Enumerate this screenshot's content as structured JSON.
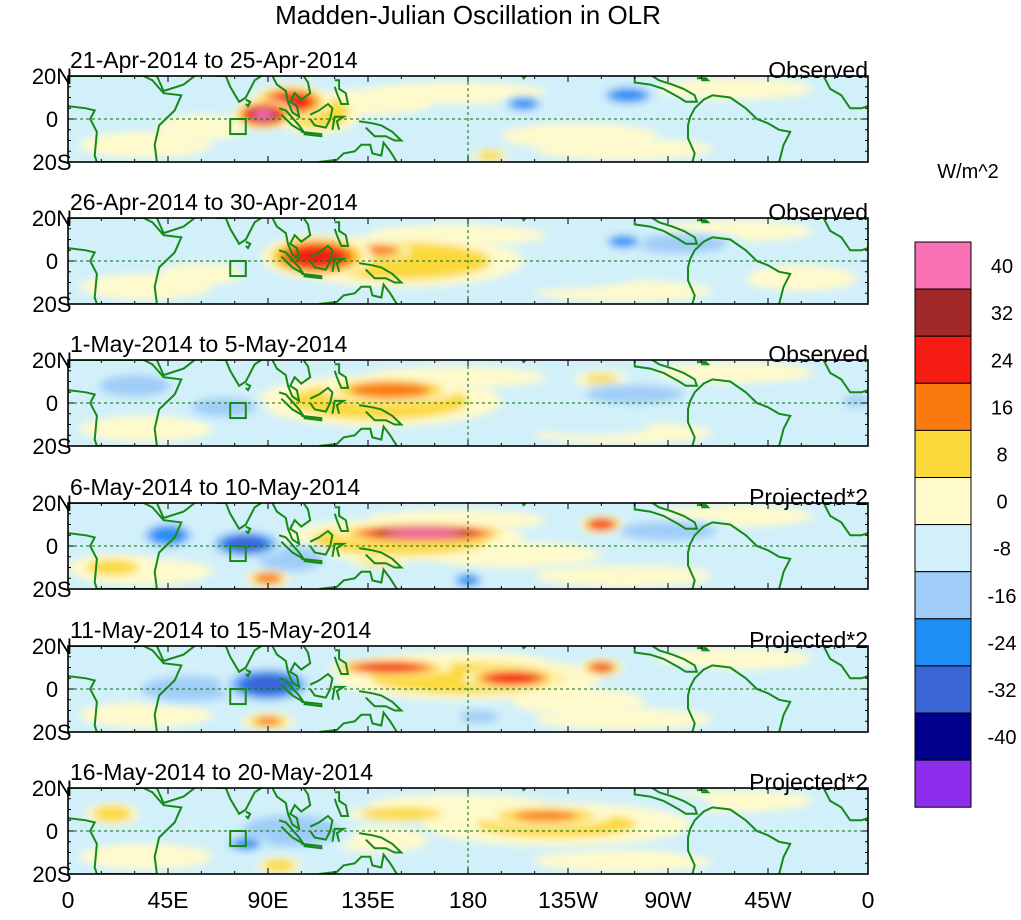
{
  "chart_data": {
    "type": "heatmap",
    "title": "Madden-Julian Oscillation in OLR",
    "variable": "OLR anomaly",
    "units_label": "W/m^2",
    "x_ticks": [
      "0",
      "45E",
      "90E",
      "135E",
      "180",
      "135W",
      "90W",
      "45W",
      "0"
    ],
    "x_tick_values": [
      0,
      45,
      90,
      135,
      180,
      225,
      270,
      315,
      360
    ],
    "y_ticks": [
      "20N",
      "0",
      "20S"
    ],
    "y_tick_values": [
      20,
      0,
      -20
    ],
    "xlim": [
      0,
      360
    ],
    "ylim": [
      -20,
      20
    ],
    "colorbar": {
      "levels": [
        -40,
        -32,
        -24,
        -16,
        -8,
        0,
        8,
        16,
        24,
        32,
        40
      ],
      "level_labels": [
        "-40",
        "-32",
        "-24",
        "-16",
        "-8",
        "0",
        "8",
        "16",
        "24",
        "32",
        "40"
      ],
      "colors": [
        "#8c2eeb",
        "#00008c",
        "#3a66d6",
        "#1e8ef5",
        "#a0cdf8",
        "#d2f0fa",
        "#fffacc",
        "#fcd93a",
        "#fa7a10",
        "#f51c14",
        "#a3282a",
        "#f871b5"
      ]
    },
    "panels": [
      {
        "date_range": "21-Apr-2014 to 25-Apr-2014",
        "status": "Observed",
        "anomalies": [
          {
            "lon": 88,
            "lat": 2,
            "dlon": 14,
            "dlat": 7,
            "value": 40
          },
          {
            "lon": 100,
            "lat": 8,
            "dlon": 18,
            "dlat": 8,
            "value": 26
          },
          {
            "lon": 112,
            "lat": 3,
            "dlon": 20,
            "dlat": 10,
            "value": 14
          },
          {
            "lon": 205,
            "lat": 7,
            "dlon": 10,
            "dlat": 4,
            "value": -17
          },
          {
            "lon": 252,
            "lat": 11,
            "dlon": 14,
            "dlat": 5,
            "value": -18
          },
          {
            "lon": 138,
            "lat": 8,
            "dlon": 26,
            "dlat": 6,
            "value": 7
          },
          {
            "lon": 20,
            "lat": 10,
            "dlon": 22,
            "dlat": 7,
            "value": -8
          },
          {
            "lon": 165,
            "lat": -10,
            "dlon": 18,
            "dlat": 5,
            "value": -8
          },
          {
            "lon": 60,
            "lat": -4,
            "dlon": 20,
            "dlat": 6,
            "value": 5
          },
          {
            "lon": 230,
            "lat": -8,
            "dlon": 35,
            "dlat": 6,
            "value": 6
          },
          {
            "lon": 190,
            "lat": -17,
            "dlon": 8,
            "dlat": 3,
            "value": 10
          }
        ]
      },
      {
        "date_range": "26-Apr-2014 to 30-Apr-2014",
        "status": "Observed",
        "anomalies": [
          {
            "lon": 112,
            "lat": 2,
            "dlon": 25,
            "dlat": 10,
            "value": 30
          },
          {
            "lon": 140,
            "lat": 5,
            "dlon": 14,
            "dlat": 4,
            "value": 20
          },
          {
            "lon": 150,
            "lat": 0,
            "dlon": 55,
            "dlat": 12,
            "value": 10
          },
          {
            "lon": 250,
            "lat": 9,
            "dlon": 10,
            "dlat": 4,
            "value": -22
          },
          {
            "lon": 275,
            "lat": 8,
            "dlon": 30,
            "dlat": 6,
            "value": -10
          },
          {
            "lon": 30,
            "lat": 5,
            "dlon": 25,
            "dlat": 7,
            "value": -8
          },
          {
            "lon": 215,
            "lat": -7,
            "dlon": 40,
            "dlat": 6,
            "value": -8
          },
          {
            "lon": 60,
            "lat": -6,
            "dlon": 18,
            "dlat": 5,
            "value": 6
          },
          {
            "lon": 330,
            "lat": -8,
            "dlon": 25,
            "dlat": 6,
            "value": 5
          }
        ]
      },
      {
        "date_range": "1-May-2014 to 5-May-2014",
        "status": "Observed",
        "anomalies": [
          {
            "lon": 145,
            "lat": 6,
            "dlon": 30,
            "dlat": 6,
            "value": 20
          },
          {
            "lon": 140,
            "lat": 1,
            "dlon": 55,
            "dlat": 12,
            "value": 10
          },
          {
            "lon": 240,
            "lat": 11,
            "dlon": 12,
            "dlat": 4,
            "value": 8
          },
          {
            "lon": 70,
            "lat": -2,
            "dlon": 20,
            "dlat": 6,
            "value": -12
          },
          {
            "lon": 30,
            "lat": 8,
            "dlon": 22,
            "dlat": 7,
            "value": -10
          },
          {
            "lon": 255,
            "lat": 4,
            "dlon": 30,
            "dlat": 6,
            "value": -10
          },
          {
            "lon": 320,
            "lat": 2,
            "dlon": 30,
            "dlat": 6,
            "value": -6
          },
          {
            "lon": 235,
            "lat": -10,
            "dlon": 28,
            "dlat": 5,
            "value": -6
          },
          {
            "lon": 355,
            "lat": 1,
            "dlon": 8,
            "dlat": 4,
            "value": -12
          }
        ]
      },
      {
        "date_range": "6-May-2014 to 10-May-2014",
        "status": "Projected*2",
        "anomalies": [
          {
            "lon": 160,
            "lat": 6,
            "dlon": 40,
            "dlat": 4.5,
            "value": 42
          },
          {
            "lon": 150,
            "lat": 3,
            "dlon": 55,
            "dlat": 10,
            "value": 12
          },
          {
            "lon": 240,
            "lat": 10,
            "dlon": 10,
            "dlat": 4,
            "value": 26
          },
          {
            "lon": 80,
            "lat": 1,
            "dlon": 18,
            "dlat": 7,
            "value": -30
          },
          {
            "lon": 45,
            "lat": 5,
            "dlon": 14,
            "dlat": 7,
            "value": -22
          },
          {
            "lon": 100,
            "lat": -6,
            "dlon": 20,
            "dlat": 8,
            "value": -12
          },
          {
            "lon": 90,
            "lat": -15,
            "dlon": 10,
            "dlat": 4,
            "value": 18
          },
          {
            "lon": 140,
            "lat": -6,
            "dlon": 14,
            "dlat": 4,
            "value": 10
          },
          {
            "lon": 180,
            "lat": -16,
            "dlon": 8,
            "dlat": 4,
            "value": -22
          },
          {
            "lon": 270,
            "lat": 7,
            "dlon": 30,
            "dlat": 6,
            "value": -10
          },
          {
            "lon": 20,
            "lat": -10,
            "dlon": 20,
            "dlat": 6,
            "value": 8
          },
          {
            "lon": 200,
            "lat": -4,
            "dlon": 40,
            "dlat": 6,
            "value": 6
          }
        ]
      },
      {
        "date_range": "11-May-2014 to 15-May-2014",
        "status": "Projected*2",
        "anomalies": [
          {
            "lon": 145,
            "lat": 10,
            "dlon": 28,
            "dlat": 4,
            "value": 28
          },
          {
            "lon": 200,
            "lat": 5,
            "dlon": 22,
            "dlat": 5,
            "value": 30
          },
          {
            "lon": 240,
            "lat": 10,
            "dlon": 10,
            "dlat": 4,
            "value": 24
          },
          {
            "lon": 180,
            "lat": 5,
            "dlon": 60,
            "dlat": 10,
            "value": 12
          },
          {
            "lon": 90,
            "lat": 2,
            "dlon": 22,
            "dlat": 9,
            "value": -26
          },
          {
            "lon": 55,
            "lat": 0,
            "dlon": 30,
            "dlat": 8,
            "value": -10
          },
          {
            "lon": 90,
            "lat": -15,
            "dlon": 12,
            "dlat": 4,
            "value": 16
          },
          {
            "lon": 185,
            "lat": -13,
            "dlon": 12,
            "dlat": 4,
            "value": -12
          },
          {
            "lon": 275,
            "lat": 5,
            "dlon": 22,
            "dlat": 5,
            "value": -8
          },
          {
            "lon": 230,
            "lat": -6,
            "dlon": 30,
            "dlat": 6,
            "value": 6
          }
        ]
      },
      {
        "date_range": "16-May-2014 to 20-May-2014",
        "status": "Projected*2",
        "anomalies": [
          {
            "lon": 215,
            "lat": 7,
            "dlon": 30,
            "dlat": 5,
            "value": 16
          },
          {
            "lon": 150,
            "lat": 8,
            "dlon": 25,
            "dlat": 4,
            "value": 14
          },
          {
            "lon": 220,
            "lat": 3,
            "dlon": 60,
            "dlat": 10,
            "value": 8
          },
          {
            "lon": 20,
            "lat": 8,
            "dlon": 12,
            "dlat": 5,
            "value": 14
          },
          {
            "lon": 100,
            "lat": 0,
            "dlon": 30,
            "dlat": 10,
            "value": -12
          },
          {
            "lon": 80,
            "lat": -6,
            "dlon": 10,
            "dlat": 4,
            "value": -20
          },
          {
            "lon": 60,
            "lat": 3,
            "dlon": 22,
            "dlat": 7,
            "value": -8
          },
          {
            "lon": 95,
            "lat": -16,
            "dlon": 10,
            "dlat": 4,
            "value": 14
          },
          {
            "lon": 140,
            "lat": -4,
            "dlon": 22,
            "dlat": 6,
            "value": 6
          },
          {
            "lon": 300,
            "lat": -6,
            "dlon": 30,
            "dlat": 6,
            "value": -6
          },
          {
            "lon": 270,
            "lat": 12,
            "dlon": 20,
            "dlat": 5,
            "value": -7
          }
        ]
      }
    ]
  }
}
